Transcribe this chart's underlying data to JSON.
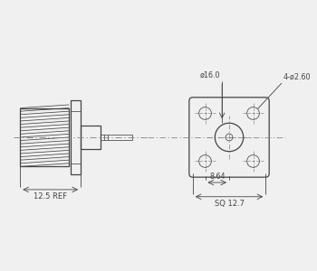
{
  "bg_color": "#f0f0f0",
  "line_color": "#444444",
  "dim_color": "#444444",
  "centerline_color": "#888888",
  "annotations": {
    "phi16": "ø16.0",
    "holes": "4-ø2.60",
    "dim_8_64": "8.64",
    "dim_sq": "SQ 12.7",
    "dim_125": "12.5 REF"
  },
  "figsize": [
    3.5,
    3.0
  ],
  "dpi": 100
}
